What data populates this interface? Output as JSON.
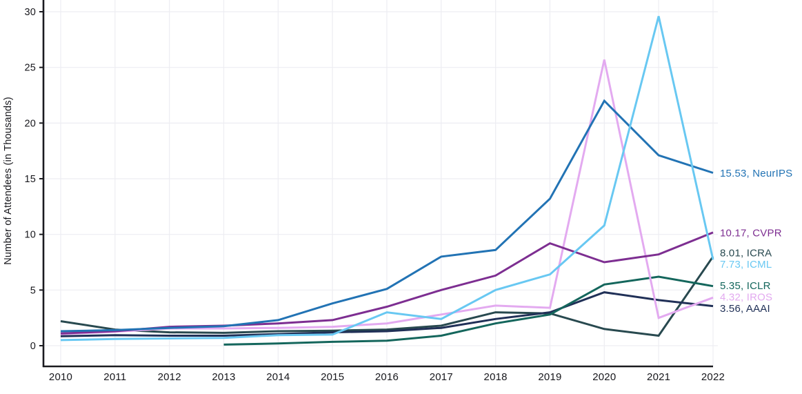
{
  "chart_data": {
    "type": "line",
    "title": "",
    "xlabel": "",
    "ylabel": "Number of Attendees (in Thousands)",
    "x": [
      2010,
      2011,
      2012,
      2013,
      2014,
      2015,
      2016,
      2017,
      2018,
      2019,
      2020,
      2021,
      2022
    ],
    "yticks": [
      0,
      5,
      10,
      15,
      20,
      25,
      30
    ],
    "ylim": [
      0,
      31
    ],
    "grid": true,
    "legend_position": "end-of-line-labels",
    "series": [
      {
        "name": "ICRA",
        "color": "#28494f",
        "end_label": "8.01, ICRA",
        "values": [
          2.2,
          1.45,
          1.2,
          1.15,
          1.3,
          1.35,
          1.45,
          1.8,
          3.0,
          2.9,
          1.5,
          0.9,
          8.01
        ]
      },
      {
        "name": "AAAI",
        "color": "#203057",
        "end_label": "3.56, AAAI",
        "values": [
          0.85,
          0.95,
          0.9,
          0.9,
          1.05,
          1.2,
          1.3,
          1.6,
          2.4,
          3.0,
          4.8,
          4.1,
          3.56
        ]
      },
      {
        "name": "ICLR",
        "color": "#14665c",
        "end_label": "5.35, ICLR",
        "values": [
          null,
          null,
          null,
          0.1,
          0.2,
          0.35,
          0.45,
          0.9,
          2.0,
          2.8,
          5.5,
          6.2,
          5.35
        ]
      },
      {
        "name": "IROS",
        "color": "#e3aaf0",
        "end_label": "4.32, IROS",
        "values": [
          1.05,
          1.25,
          1.55,
          1.55,
          1.6,
          1.7,
          2.0,
          2.8,
          3.6,
          3.4,
          25.7,
          2.5,
          4.32
        ]
      },
      {
        "name": "CVPR",
        "color": "#7d2e91",
        "end_label": "10.17, CVPR",
        "values": [
          1.1,
          1.3,
          1.7,
          1.8,
          2.0,
          2.3,
          3.5,
          5.0,
          6.3,
          9.2,
          7.5,
          8.2,
          10.17
        ]
      },
      {
        "name": "NeurIPS",
        "color": "#2273b4",
        "end_label": "15.53, NeurIPS",
        "values": [
          1.3,
          1.4,
          1.6,
          1.75,
          2.3,
          3.8,
          5.1,
          8.0,
          8.6,
          13.2,
          22.0,
          17.1,
          15.53
        ]
      },
      {
        "name": "ICML",
        "color": "#68c8f2",
        "end_label": "7.73, ICML",
        "values": [
          0.5,
          0.6,
          0.65,
          0.7,
          0.95,
          1.0,
          3.0,
          2.4,
          5.0,
          6.4,
          10.8,
          29.6,
          7.73
        ]
      }
    ],
    "colors": {
      "axis": "#1a1a1f",
      "grid": "#ededf2",
      "tick_text": "#17171c"
    }
  }
}
